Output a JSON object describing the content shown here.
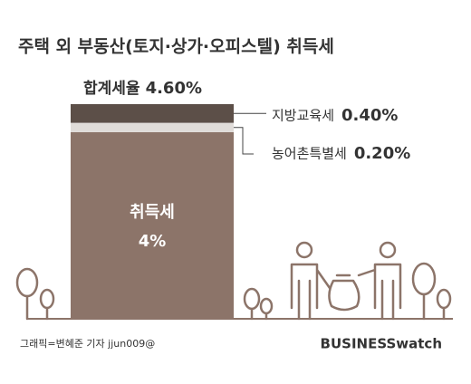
{
  "chart_data": {
    "type": "bar",
    "title": "주택 외 부동산(토지·상가·오피스텔) 취득세",
    "total_name": "합계세율",
    "total": 4.6,
    "total_label": "4.60%",
    "series": [
      {
        "name": "취득세",
        "color": "#8c7469",
        "values": [
          4
        ],
        "value_labels": [
          "4%"
        ]
      },
      {
        "name": "농어촌특별세",
        "color": "#e0dcd9",
        "values": [
          0.2
        ],
        "value_labels": [
          "0.20%"
        ]
      },
      {
        "name": "지방교육세",
        "color": "#5c4f48",
        "values": [
          0.4
        ],
        "value_labels": [
          "0.40%"
        ]
      }
    ],
    "credit": "그래픽=변혜준 기자 jjun009@",
    "logo": "BUSINESSwatch"
  }
}
